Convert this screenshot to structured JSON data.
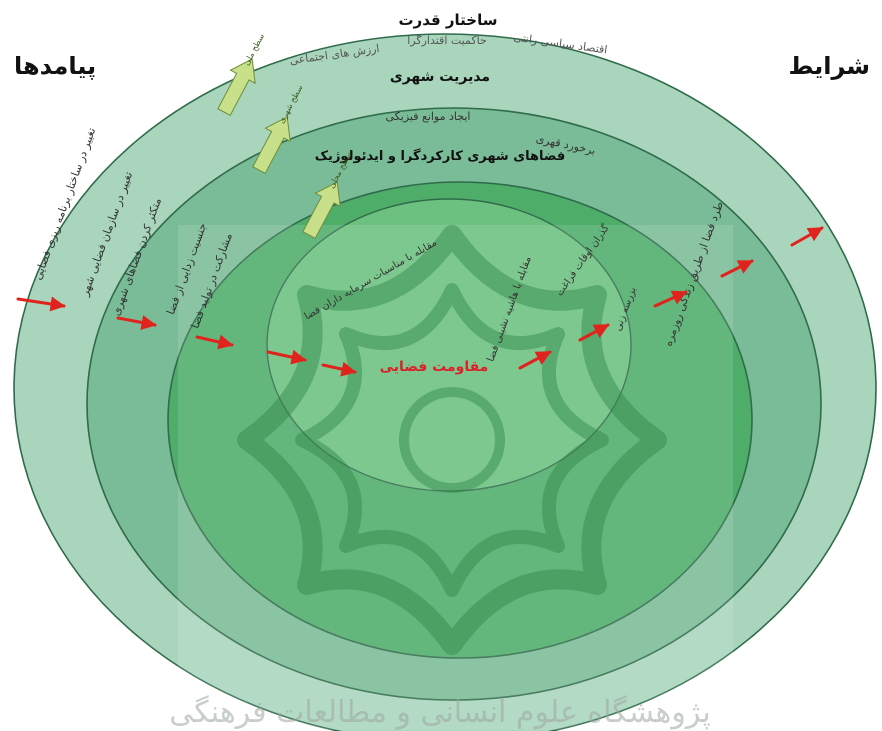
{
  "corners": {
    "left": "پیامدها",
    "right": "شرایط"
  },
  "rings": {
    "outer_title": "ساختار قدرت",
    "outer_items": [
      "اقتصاد سیاسی رانتی",
      "حاکمیت اقتدارگرا",
      "ارزش های اجتماعی"
    ],
    "management_title": "مدیریت شهری",
    "management_items": [
      "ایجاد موانع فیزیکی",
      "برخورد قهری"
    ],
    "spaces_title": "فضاهای شهری کارکردگرا و ایدئولوژیک",
    "center_label": "مقاومت فضایی"
  },
  "levels": {
    "national": "سطح ملی",
    "urban": "سطح شهری",
    "local": "سطح محلی"
  },
  "outcomes": [
    "تغییر در ساختار برنامه ریزی فضایی",
    "تغییر در سازمان فضایی شهر",
    "متکثر کردن فضاهای شهری",
    "جنسیت زدایی از فضا",
    "مشارکت در تولید فضا",
    "مقابله با مناسبات سرمایه داران فضا"
  ],
  "conditions": [
    "طرد فضا از طریق زندگی روزمره",
    "بزرسه زنی",
    "گذران اوقات فراغت",
    "مقابله با هاشیه نشینی فضا"
  ],
  "watermark": "پژوهشگاه علوم انسانی و مطالعات فرهنگی",
  "colors": {
    "ring_outer": "#a9d5bd",
    "ring_management": "#7abc97",
    "ring_spaces": "#4fad6a",
    "ring_inner": "#6cc180",
    "arrow_red": "#e0231c",
    "arrow_yellow": "#c8e08a",
    "center_text": "#d9232a"
  }
}
